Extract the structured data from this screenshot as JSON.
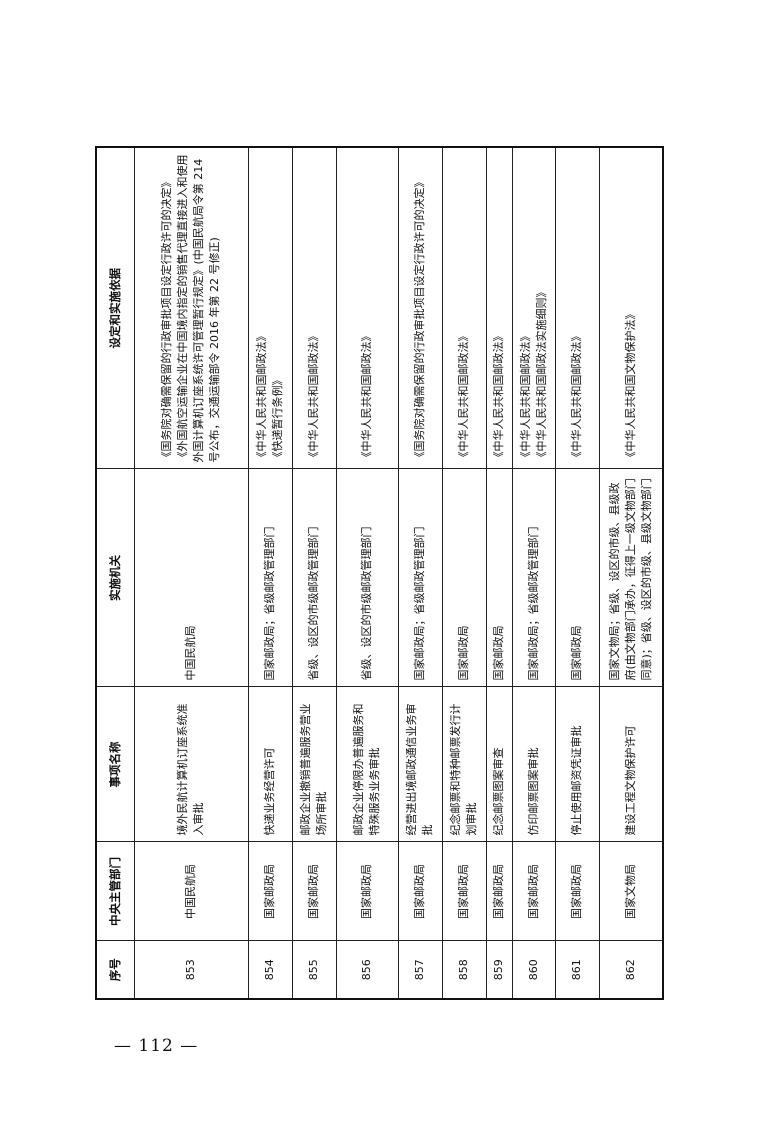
{
  "headers": {
    "no": "序号",
    "dept": "中央主管部门",
    "item": "事项名称",
    "agency": "实施机关",
    "basis": "设定和实施依据"
  },
  "rows": [
    {
      "no": "853",
      "dept": "中国民航局",
      "item": "境外民航计算机订座系统准入审批",
      "agency": "中国民航局",
      "basis": [
        "《国务院对确需保留的行政审批项目设定行政许可的决定》",
        "《外国航空运输企业在中国境内指定的销售代理直接进入和使用外国计算机订座系统许可管理暂行规定》(中国民航局令第 214 号公布，交通运输部令 2016 年第 22 号修正)"
      ]
    },
    {
      "no": "854",
      "dept": "国家邮政局",
      "item": "快递业务经营许可",
      "agency": "国家邮政局；省级邮政管理部门",
      "basis": [
        "《中华人民共和国邮政法》",
        "《快递暂行条例》"
      ]
    },
    {
      "no": "855",
      "dept": "国家邮政局",
      "item": "邮政企业撤销普遍服务营业场所审批",
      "agency": "省级、设区的市级邮政管理部门",
      "basis": [
        "《中华人民共和国邮政法》"
      ]
    },
    {
      "no": "856",
      "dept": "国家邮政局",
      "item": "邮政企业停限办普遍服务和特殊服务业务审批",
      "agency": "省级、设区的市级邮政管理部门",
      "basis": [
        "《中华人民共和国邮政法》"
      ]
    },
    {
      "no": "857",
      "dept": "国家邮政局",
      "item": "经营进出境邮政通信业务审批",
      "agency": "国家邮政局；省级邮政管理部门",
      "basis": [
        "《国务院对确需保留的行政审批项目设定行政许可的决定》"
      ]
    },
    {
      "no": "858",
      "dept": "国家邮政局",
      "item": "纪念邮票和特种邮票发行计划审批",
      "agency": "国家邮政局",
      "basis": [
        "《中华人民共和国邮政法》"
      ]
    },
    {
      "no": "859",
      "dept": "国家邮政局",
      "item": "纪念邮票图案审查",
      "agency": "国家邮政局",
      "basis": [
        "《中华人民共和国邮政法》"
      ]
    },
    {
      "no": "860",
      "dept": "国家邮政局",
      "item": "仿印邮票图案审批",
      "agency": "国家邮政局；省级邮政管理部门",
      "basis": [
        "《中华人民共和国邮政法》",
        "《中华人民共和国邮政法实施细则》"
      ]
    },
    {
      "no": "861",
      "dept": "国家邮政局",
      "item": "停止使用邮资凭证审批",
      "agency": "国家邮政局",
      "basis": [
        "《中华人民共和国邮政法》"
      ]
    },
    {
      "no": "862",
      "dept": "国家文物局",
      "item": "建设工程文物保护许可",
      "agency": "国家文物局；省级、设区的市级、县级政府(由文物部门承办，征得上一级文物部门同意)；省级、设区的市级、县级文物部门",
      "basis": [
        "《中华人民共和国文物保护法》"
      ]
    }
  ],
  "page_number": "— 112 —"
}
